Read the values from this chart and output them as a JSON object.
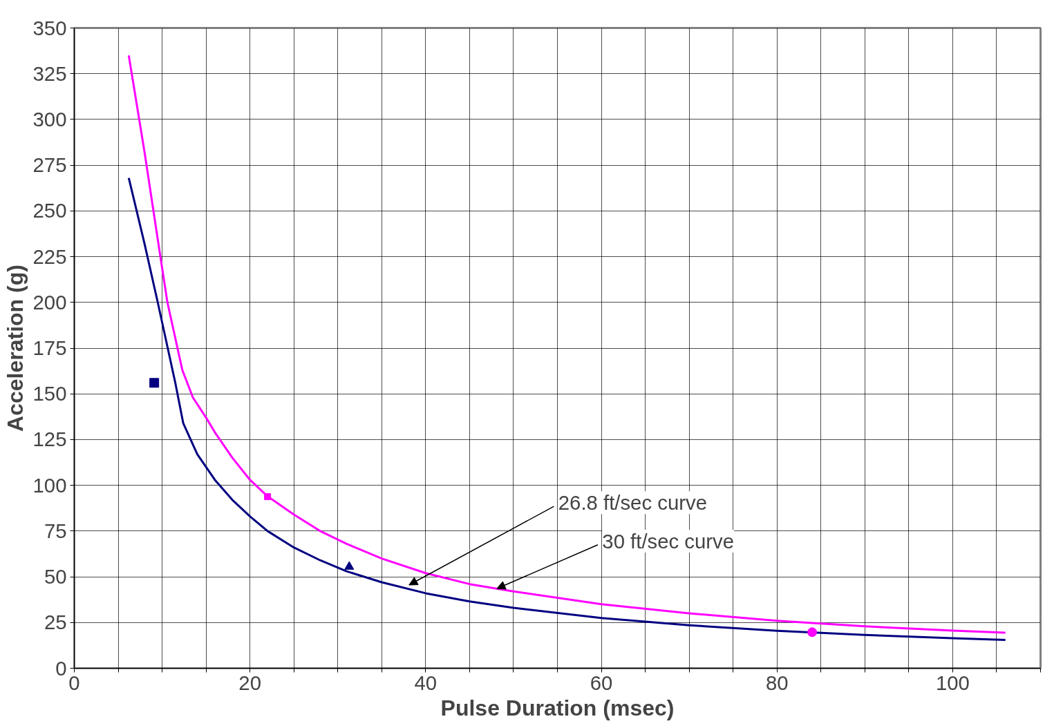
{
  "chart_data": {
    "type": "line",
    "xlabel": "Pulse Duration (msec)",
    "ylabel": "Acceleration (g)",
    "xlim": [
      0,
      110
    ],
    "ylim": [
      0,
      350
    ],
    "xticks": [
      0,
      {
        "value": 5,
        "label": null
      },
      {
        "value": 10,
        "label": null
      },
      {
        "value": 15,
        "label": null
      },
      20,
      {
        "value": 25,
        "label": null
      },
      {
        "value": 30,
        "label": null
      },
      {
        "value": 35,
        "label": null
      },
      40,
      {
        "value": 45,
        "label": null
      },
      {
        "value": 50,
        "label": null
      },
      {
        "value": 55,
        "label": null
      },
      60,
      {
        "value": 65,
        "label": null
      },
      {
        "value": 70,
        "label": null
      },
      {
        "value": 75,
        "label": null
      },
      80,
      {
        "value": 85,
        "label": null
      },
      {
        "value": 90,
        "label": null
      },
      {
        "value": 95,
        "label": null
      },
      100,
      {
        "value": 105,
        "label": null
      },
      {
        "value": 110,
        "label": null
      }
    ],
    "yticks": [
      0,
      25,
      50,
      75,
      100,
      125,
      150,
      175,
      200,
      225,
      250,
      275,
      300,
      325,
      350
    ],
    "grid": true,
    "series": [
      {
        "color": "#000080",
        "marker": "none",
        "x": [
          6.2,
          8,
          9.5,
          10.5,
          11.5,
          12.4,
          14,
          16,
          18,
          20,
          22,
          25,
          28,
          31,
          35,
          40,
          45,
          50,
          60,
          70,
          80,
          90,
          100,
          106
        ],
        "values": [
          268,
          232,
          200,
          178,
          156,
          134,
          117,
          103,
          92,
          83,
          75,
          66,
          59,
          53,
          47,
          41,
          36.5,
          33,
          27.5,
          23.5,
          20.5,
          18.2,
          16.4,
          15.5
        ]
      },
      {
        "color": "#ff00ff",
        "marker": "none",
        "x": [
          6.2,
          8,
          9.8,
          10.6,
          12.3,
          13.5,
          15,
          16,
          18,
          20,
          22,
          25,
          28,
          31,
          35,
          40,
          45,
          50,
          60,
          70,
          80,
          90,
          100,
          106
        ],
        "values": [
          335,
          282,
          225,
          200,
          163,
          148,
          137,
          129,
          115,
          103,
          94,
          84,
          75,
          68,
          60,
          52,
          46,
          42,
          35,
          30,
          26,
          22.9,
          20.6,
          19.4
        ]
      },
      {
        "type": "scatter",
        "color": "#000080",
        "marker": "square",
        "x": [
          9.1
        ],
        "values": [
          156
        ]
      },
      {
        "type": "scatter",
        "color": "#000080",
        "marker": "triangle",
        "x": [
          31.3
        ],
        "values": [
          55.5
        ]
      },
      {
        "type": "scatter",
        "color": "#ff00ff",
        "marker": "square",
        "x": [
          22
        ],
        "values": [
          93.8
        ]
      },
      {
        "type": "scatter",
        "color": "#ff00ff",
        "marker": "circle",
        "x": [
          84
        ],
        "values": [
          19.7
        ]
      }
    ],
    "annotations": [
      {
        "text": "26.8 ft/sec curve",
        "x": 38.1,
        "y": 45.5
      },
      {
        "text": "30 ft/sec curve",
        "x": 48.1,
        "y": 43.5
      }
    ]
  }
}
